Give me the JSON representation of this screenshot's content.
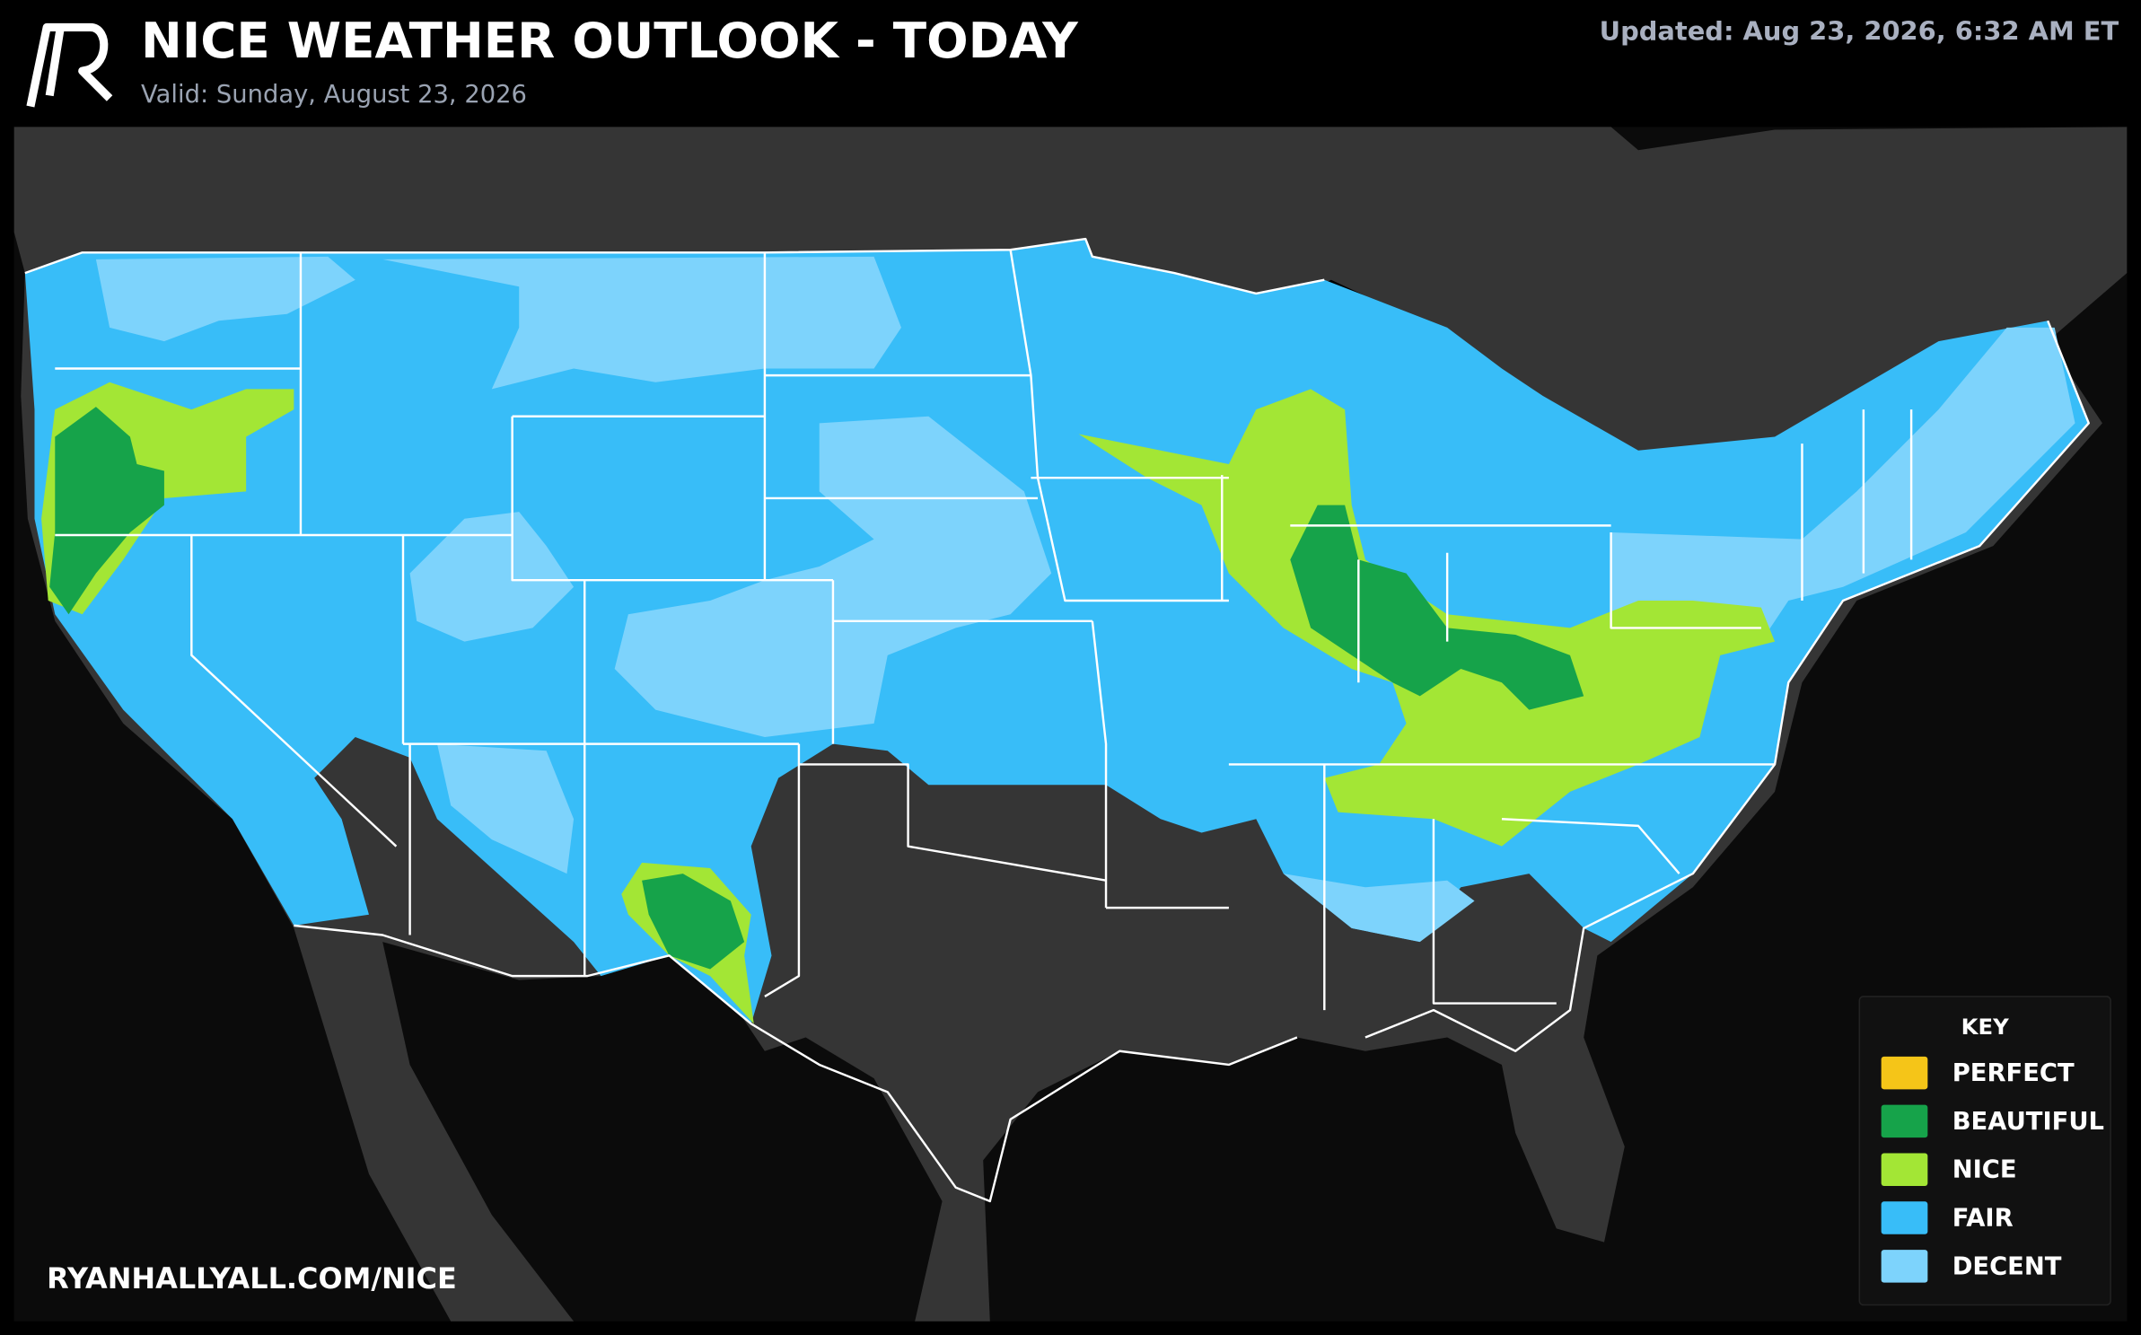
{
  "header": {
    "title": "NICE WEATHER OUTLOOK - TODAY",
    "subtitle": "Valid: Sunday, August 23, 2026",
    "updated": "Updated: Aug 23, 2026, 6:32 AM ET"
  },
  "legend": {
    "title": "KEY",
    "items": [
      {
        "label": "PERFECT",
        "color": "#f5c518"
      },
      {
        "label": "BEAUTIFUL",
        "color": "#16a34a"
      },
      {
        "label": "NICE",
        "color": "#a3e635"
      },
      {
        "label": "FAIR",
        "color": "#38bdf8"
      },
      {
        "label": "DECENT",
        "color": "#7dd3fc"
      }
    ]
  },
  "footer": {
    "url": "RYANHALLYALL.COM/NICE"
  }
}
